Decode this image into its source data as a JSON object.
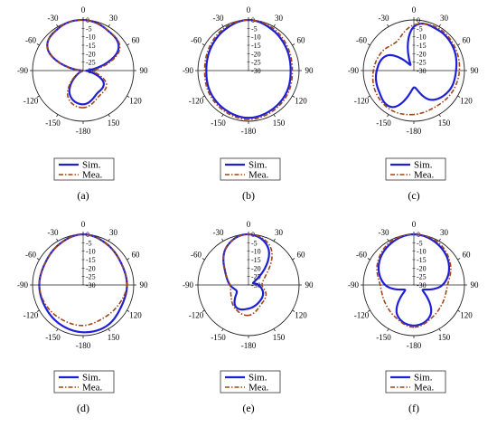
{
  "legend": {
    "sim_label": "Sim.",
    "mea_label": "Mea."
  },
  "colors": {
    "sim": "#1f1fd6",
    "mea": "#a0451a"
  },
  "chart_data": [
    {
      "type": "polar-line",
      "panel_label": "(a)",
      "angular_ticks": [
        "0",
        "30",
        "60",
        "90",
        "120",
        "150",
        "-180",
        "-150",
        "-120",
        "-90",
        "-60",
        "-30"
      ],
      "radial_ticks": [
        "0",
        "-5",
        "-10",
        "-15",
        "-20",
        "-25",
        "-30"
      ],
      "rlim": [
        -30,
        0
      ],
      "angles_deg": [
        -180,
        -150,
        -120,
        -90,
        -60,
        -30,
        0,
        30,
        60,
        90,
        120,
        150
      ],
      "series": [
        {
          "name": "Sim.",
          "values_db": [
            -10,
            -14,
            -27,
            -30,
            -6,
            -1,
            0,
            -2,
            -6,
            -28,
            -16,
            -14
          ]
        },
        {
          "name": "Mea.",
          "values_db": [
            -8,
            -12,
            -26,
            -30,
            -6,
            -1,
            0,
            -2,
            -5,
            -24,
            -14,
            -12
          ]
        }
      ]
    },
    {
      "type": "polar-line",
      "panel_label": "(b)",
      "angular_ticks": [
        "0",
        "30",
        "60",
        "90",
        "120",
        "150",
        "-180",
        "-150",
        "-120",
        "-90",
        "-60",
        "-30"
      ],
      "radial_ticks": [
        "0",
        "-5",
        "-10",
        "-15",
        "-20",
        "-25",
        "-30"
      ],
      "rlim": [
        -30,
        0
      ],
      "angles_deg": [
        -180,
        -150,
        -120,
        -90,
        -60,
        -30,
        0,
        30,
        60,
        90,
        120,
        150
      ],
      "series": [
        {
          "name": "Sim.",
          "values_db": [
            -2,
            -3,
            -4,
            -5,
            -4,
            -2,
            0,
            -2,
            -4,
            -5,
            -4,
            -3
          ]
        },
        {
          "name": "Mea.",
          "values_db": [
            -1,
            -2,
            -3,
            -4,
            -3,
            -1,
            0,
            -1,
            -3,
            -4,
            -3,
            -2
          ]
        }
      ]
    },
    {
      "type": "polar-line",
      "panel_label": "(c)",
      "angular_ticks": [
        "0",
        "30",
        "60",
        "90",
        "120",
        "150",
        "-180",
        "-150",
        "-120",
        "-90",
        "-60",
        "-30"
      ],
      "radial_ticks": [
        "0",
        "-5",
        "-10",
        "-15",
        "-20",
        "-25",
        "-30"
      ],
      "rlim": [
        -30,
        0
      ],
      "angles_deg": [
        -180,
        -150,
        -120,
        -90,
        -60,
        -30,
        0,
        30,
        60,
        90,
        120,
        150
      ],
      "series": [
        {
          "name": "Sim.",
          "values_db": [
            -20,
            -5,
            -6,
            -8,
            -12,
            -26,
            -4,
            -2,
            -3,
            -5,
            -6,
            -10
          ]
        },
        {
          "name": "Mea.",
          "values_db": [
            -4,
            -3,
            -4,
            -6,
            -8,
            -10,
            -3,
            -1,
            -2,
            -3,
            -4,
            -5
          ]
        }
      ]
    },
    {
      "type": "polar-line",
      "panel_label": "(d)",
      "angular_ticks": [
        "0",
        "30",
        "60",
        "90",
        "120",
        "150",
        "-180",
        "-150",
        "-120",
        "-90",
        "-60",
        "-30"
      ],
      "radial_ticks": [
        "0",
        "-5",
        "-10",
        "-15",
        "-20",
        "-25",
        "-30"
      ],
      "rlim": [
        -30,
        0
      ],
      "angles_deg": [
        -180,
        -150,
        -120,
        -90,
        -60,
        -30,
        0,
        30,
        60,
        90,
        120,
        150
      ],
      "series": [
        {
          "name": "Sim.",
          "values_db": [
            -2,
            -3,
            -4,
            -4,
            -4,
            -2,
            0,
            -2,
            -4,
            -4,
            -4,
            -2
          ]
        },
        {
          "name": "Mea.",
          "values_db": [
            -6,
            -6,
            -5,
            -4,
            -4,
            -2,
            0,
            -2,
            -4,
            -4,
            -6,
            -7
          ]
        }
      ]
    },
    {
      "type": "polar-line",
      "panel_label": "(e)",
      "angular_ticks": [
        "0",
        "30",
        "60",
        "90",
        "120",
        "150",
        "-180",
        "-150",
        "-120",
        "-90",
        "-60",
        "-30"
      ],
      "radial_ticks": [
        "0",
        "-5",
        "-10",
        "-15",
        "-20",
        "-25",
        "-30"
      ],
      "rlim": [
        -30,
        0
      ],
      "angles_deg": [
        -180,
        -150,
        -120,
        -90,
        -60,
        -30,
        0,
        30,
        60,
        90,
        120,
        150
      ],
      "series": [
        {
          "name": "Sim.",
          "values_db": [
            -16,
            -15,
            -22,
            -19,
            -14,
            -4,
            0,
            -6,
            -26,
            -24,
            -20,
            -18
          ]
        },
        {
          "name": "Mea.",
          "values_db": [
            -12,
            -14,
            -18,
            -19,
            -14,
            -4,
            0,
            -4,
            -18,
            -22,
            -18,
            -16
          ]
        }
      ]
    },
    {
      "type": "polar-line",
      "panel_label": "(f)",
      "angular_ticks": [
        "0",
        "30",
        "60",
        "90",
        "120",
        "150",
        "-180",
        "-150",
        "-120",
        "-90",
        "-60",
        "-30"
      ],
      "radial_ticks": [
        "0",
        "-5",
        "-10",
        "-15",
        "-20",
        "-25",
        "-30"
      ],
      "rlim": [
        -30,
        0
      ],
      "angles_deg": [
        -180,
        -150,
        -120,
        -90,
        -60,
        -30,
        0,
        30,
        60,
        90,
        120,
        150
      ],
      "series": [
        {
          "name": "Sim.",
          "values_db": [
            -6,
            -10,
            -24,
            -13,
            -6,
            -2,
            0,
            -2,
            -6,
            -13,
            -24,
            -10
          ]
        },
        {
          "name": "Mea.",
          "values_db": [
            -5,
            -8,
            -10,
            -10,
            -5,
            -1,
            0,
            -1,
            -5,
            -10,
            -10,
            -8
          ]
        }
      ]
    }
  ]
}
